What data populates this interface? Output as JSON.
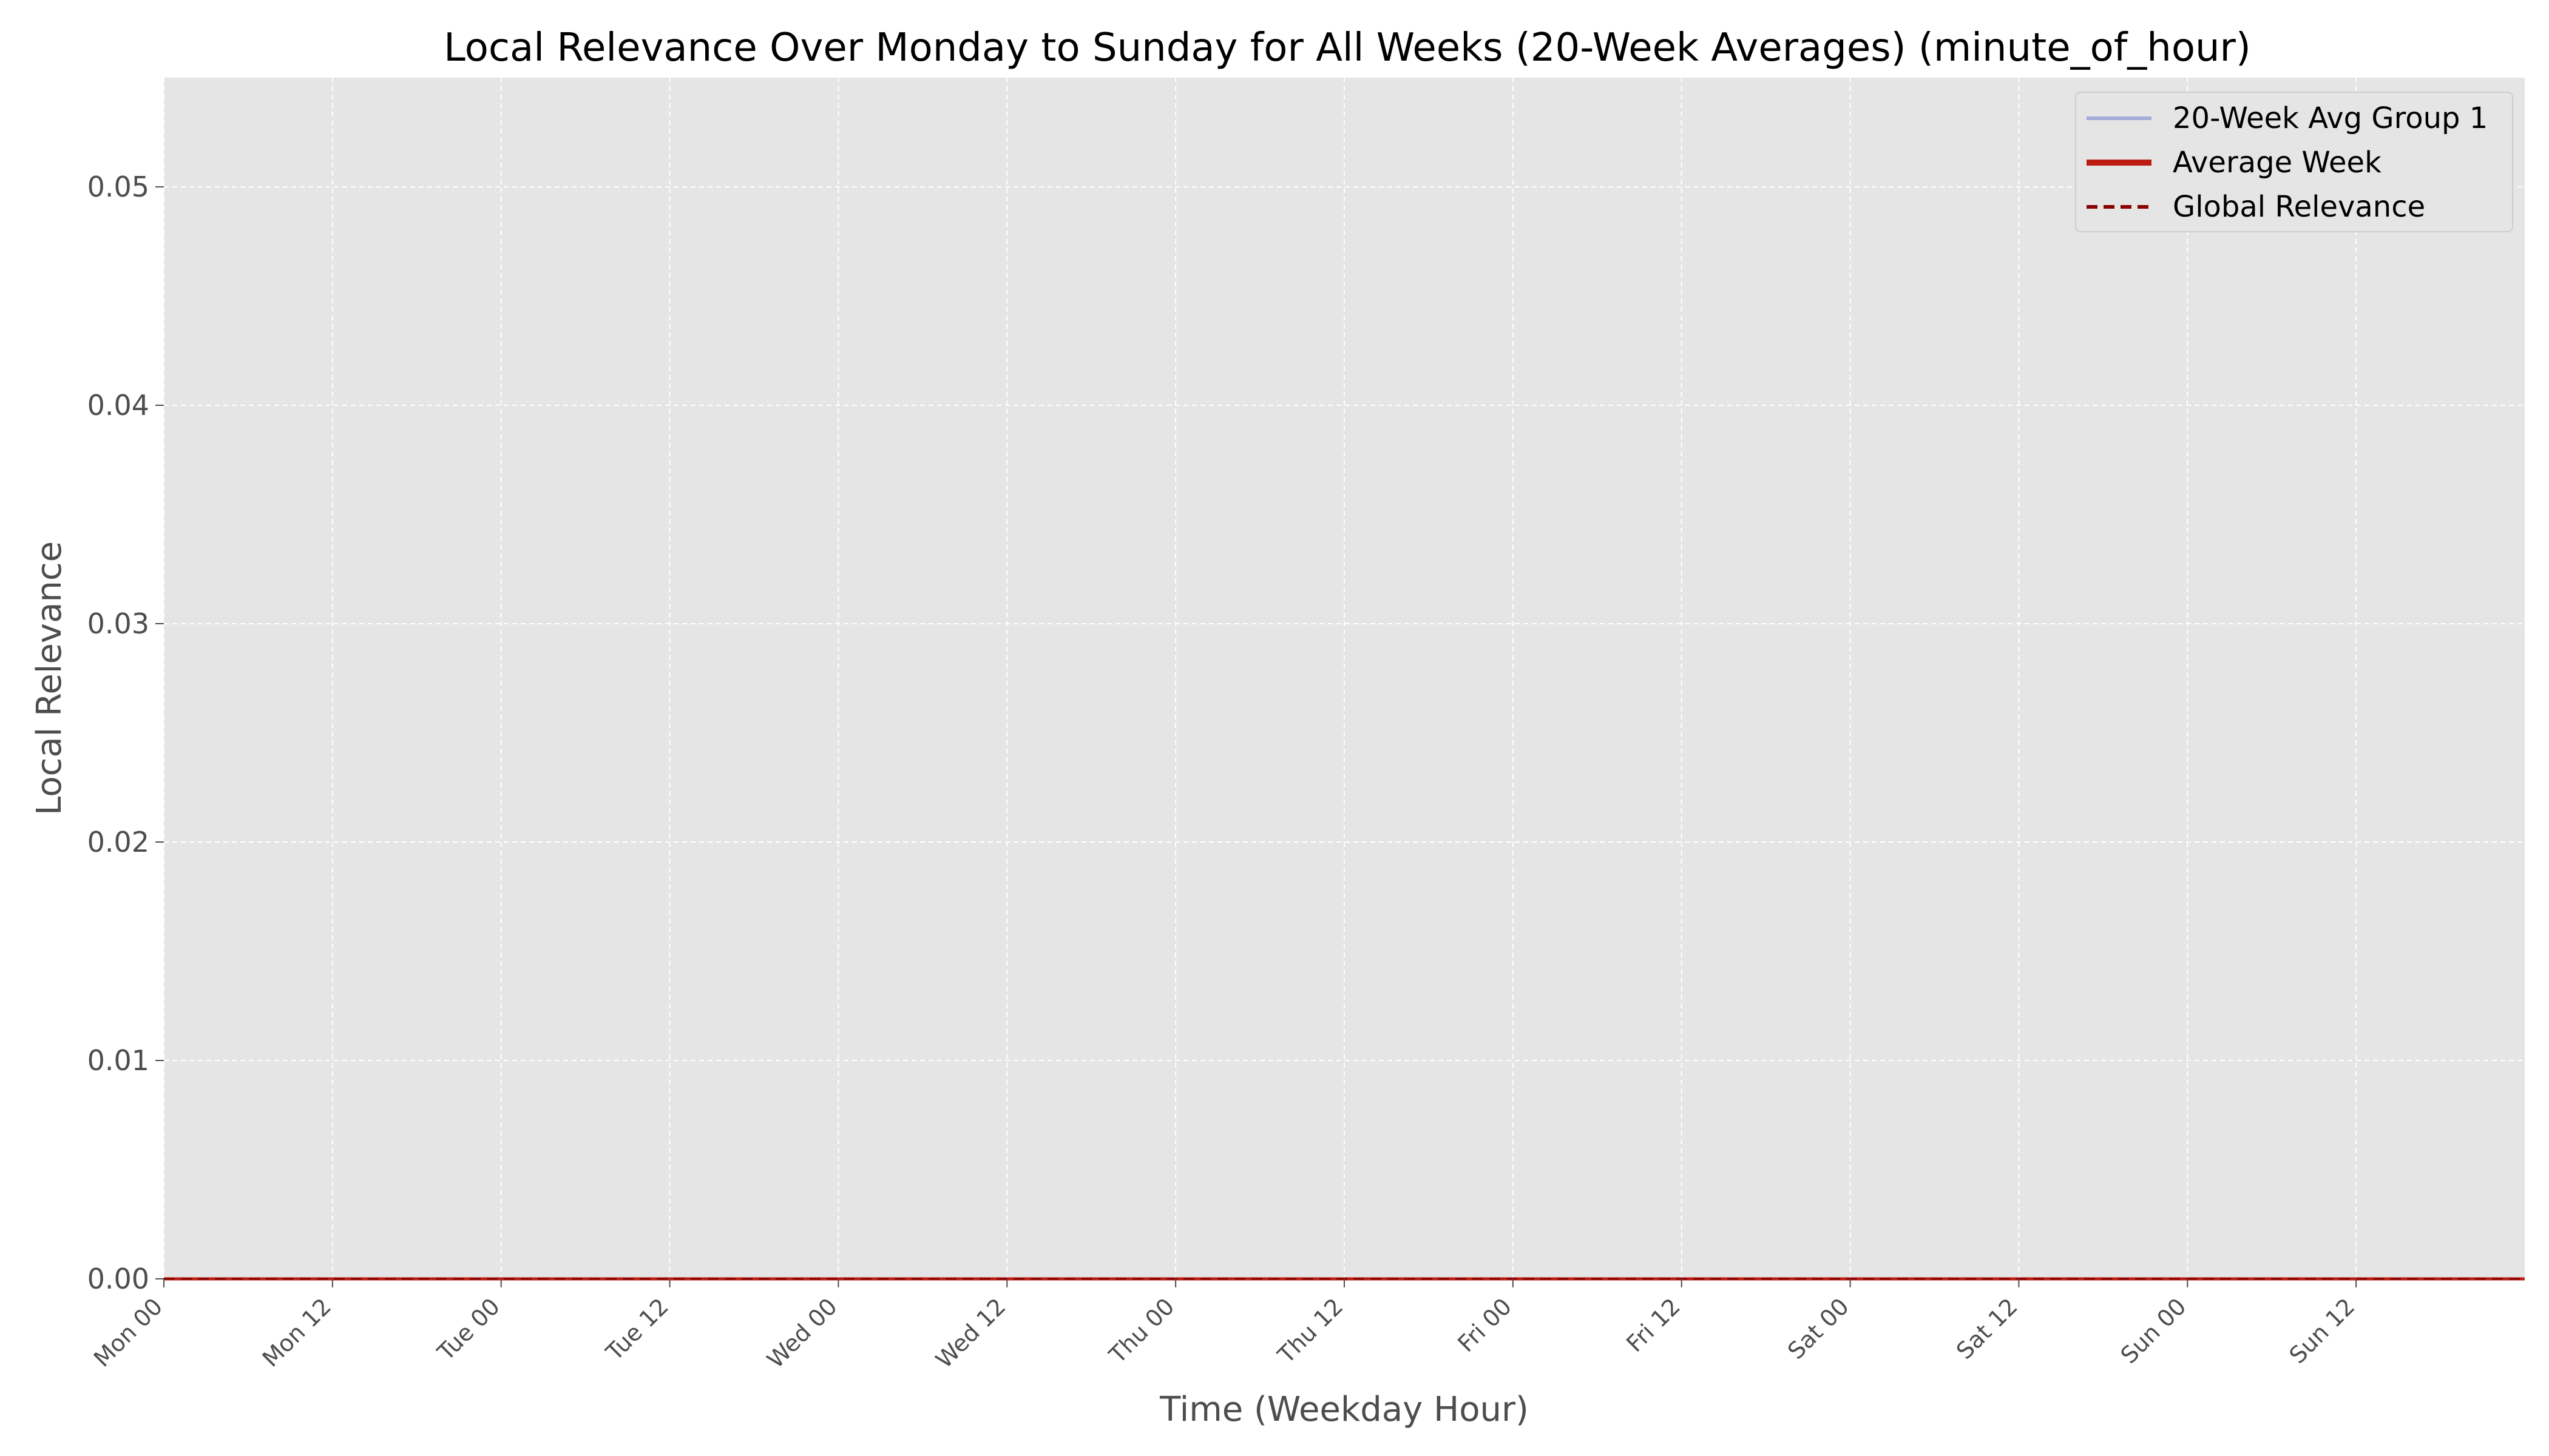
{
  "chart_data": {
    "type": "line",
    "title": "Local Relevance Over Monday to Sunday for All Weeks (20-Week Averages) (minute_of_hour)",
    "xlabel": "Time (Weekday Hour)",
    "ylabel": "Local Relevance",
    "x_unit": "hours since Mon 00",
    "xlim": [
      0,
      168
    ],
    "ylim": [
      0,
      0.055
    ],
    "grid": true,
    "legend_position": "upper right",
    "x_ticks": [
      {
        "value": 0,
        "label": "Mon 00"
      },
      {
        "value": 12,
        "label": "Mon 12"
      },
      {
        "value": 24,
        "label": "Tue 00"
      },
      {
        "value": 36,
        "label": "Tue 12"
      },
      {
        "value": 48,
        "label": "Wed 00"
      },
      {
        "value": 60,
        "label": "Wed 12"
      },
      {
        "value": 72,
        "label": "Thu 00"
      },
      {
        "value": 84,
        "label": "Thu 12"
      },
      {
        "value": 96,
        "label": "Fri 00"
      },
      {
        "value": 108,
        "label": "Fri 12"
      },
      {
        "value": 120,
        "label": "Sat 00"
      },
      {
        "value": 132,
        "label": "Sat 12"
      },
      {
        "value": 144,
        "label": "Sun 00"
      },
      {
        "value": 156,
        "label": "Sun 12"
      }
    ],
    "y_ticks": [
      {
        "value": 0.0,
        "label": "0.00"
      },
      {
        "value": 0.01,
        "label": "0.01"
      },
      {
        "value": 0.02,
        "label": "0.02"
      },
      {
        "value": 0.03,
        "label": "0.03"
      },
      {
        "value": 0.04,
        "label": "0.04"
      },
      {
        "value": 0.05,
        "label": "0.05"
      }
    ],
    "series": [
      {
        "name": "20-Week Avg Group 1",
        "style": "solid-thin",
        "color": "#a4acd8",
        "x": [
          0,
          168
        ],
        "y": [
          0,
          0
        ]
      },
      {
        "name": "Average Week",
        "style": "solid-thick",
        "color": "#bb1e10",
        "x": [
          0,
          168
        ],
        "y": [
          0,
          0
        ]
      },
      {
        "name": "Global Relevance",
        "style": "dashed",
        "color": "#8b0000",
        "x": [
          0,
          168
        ],
        "y": [
          0,
          0
        ]
      }
    ]
  },
  "colors": {
    "plot_background": "#e5e5e5",
    "grid": "#ffffff",
    "axis_text": "#4d4d4d"
  }
}
